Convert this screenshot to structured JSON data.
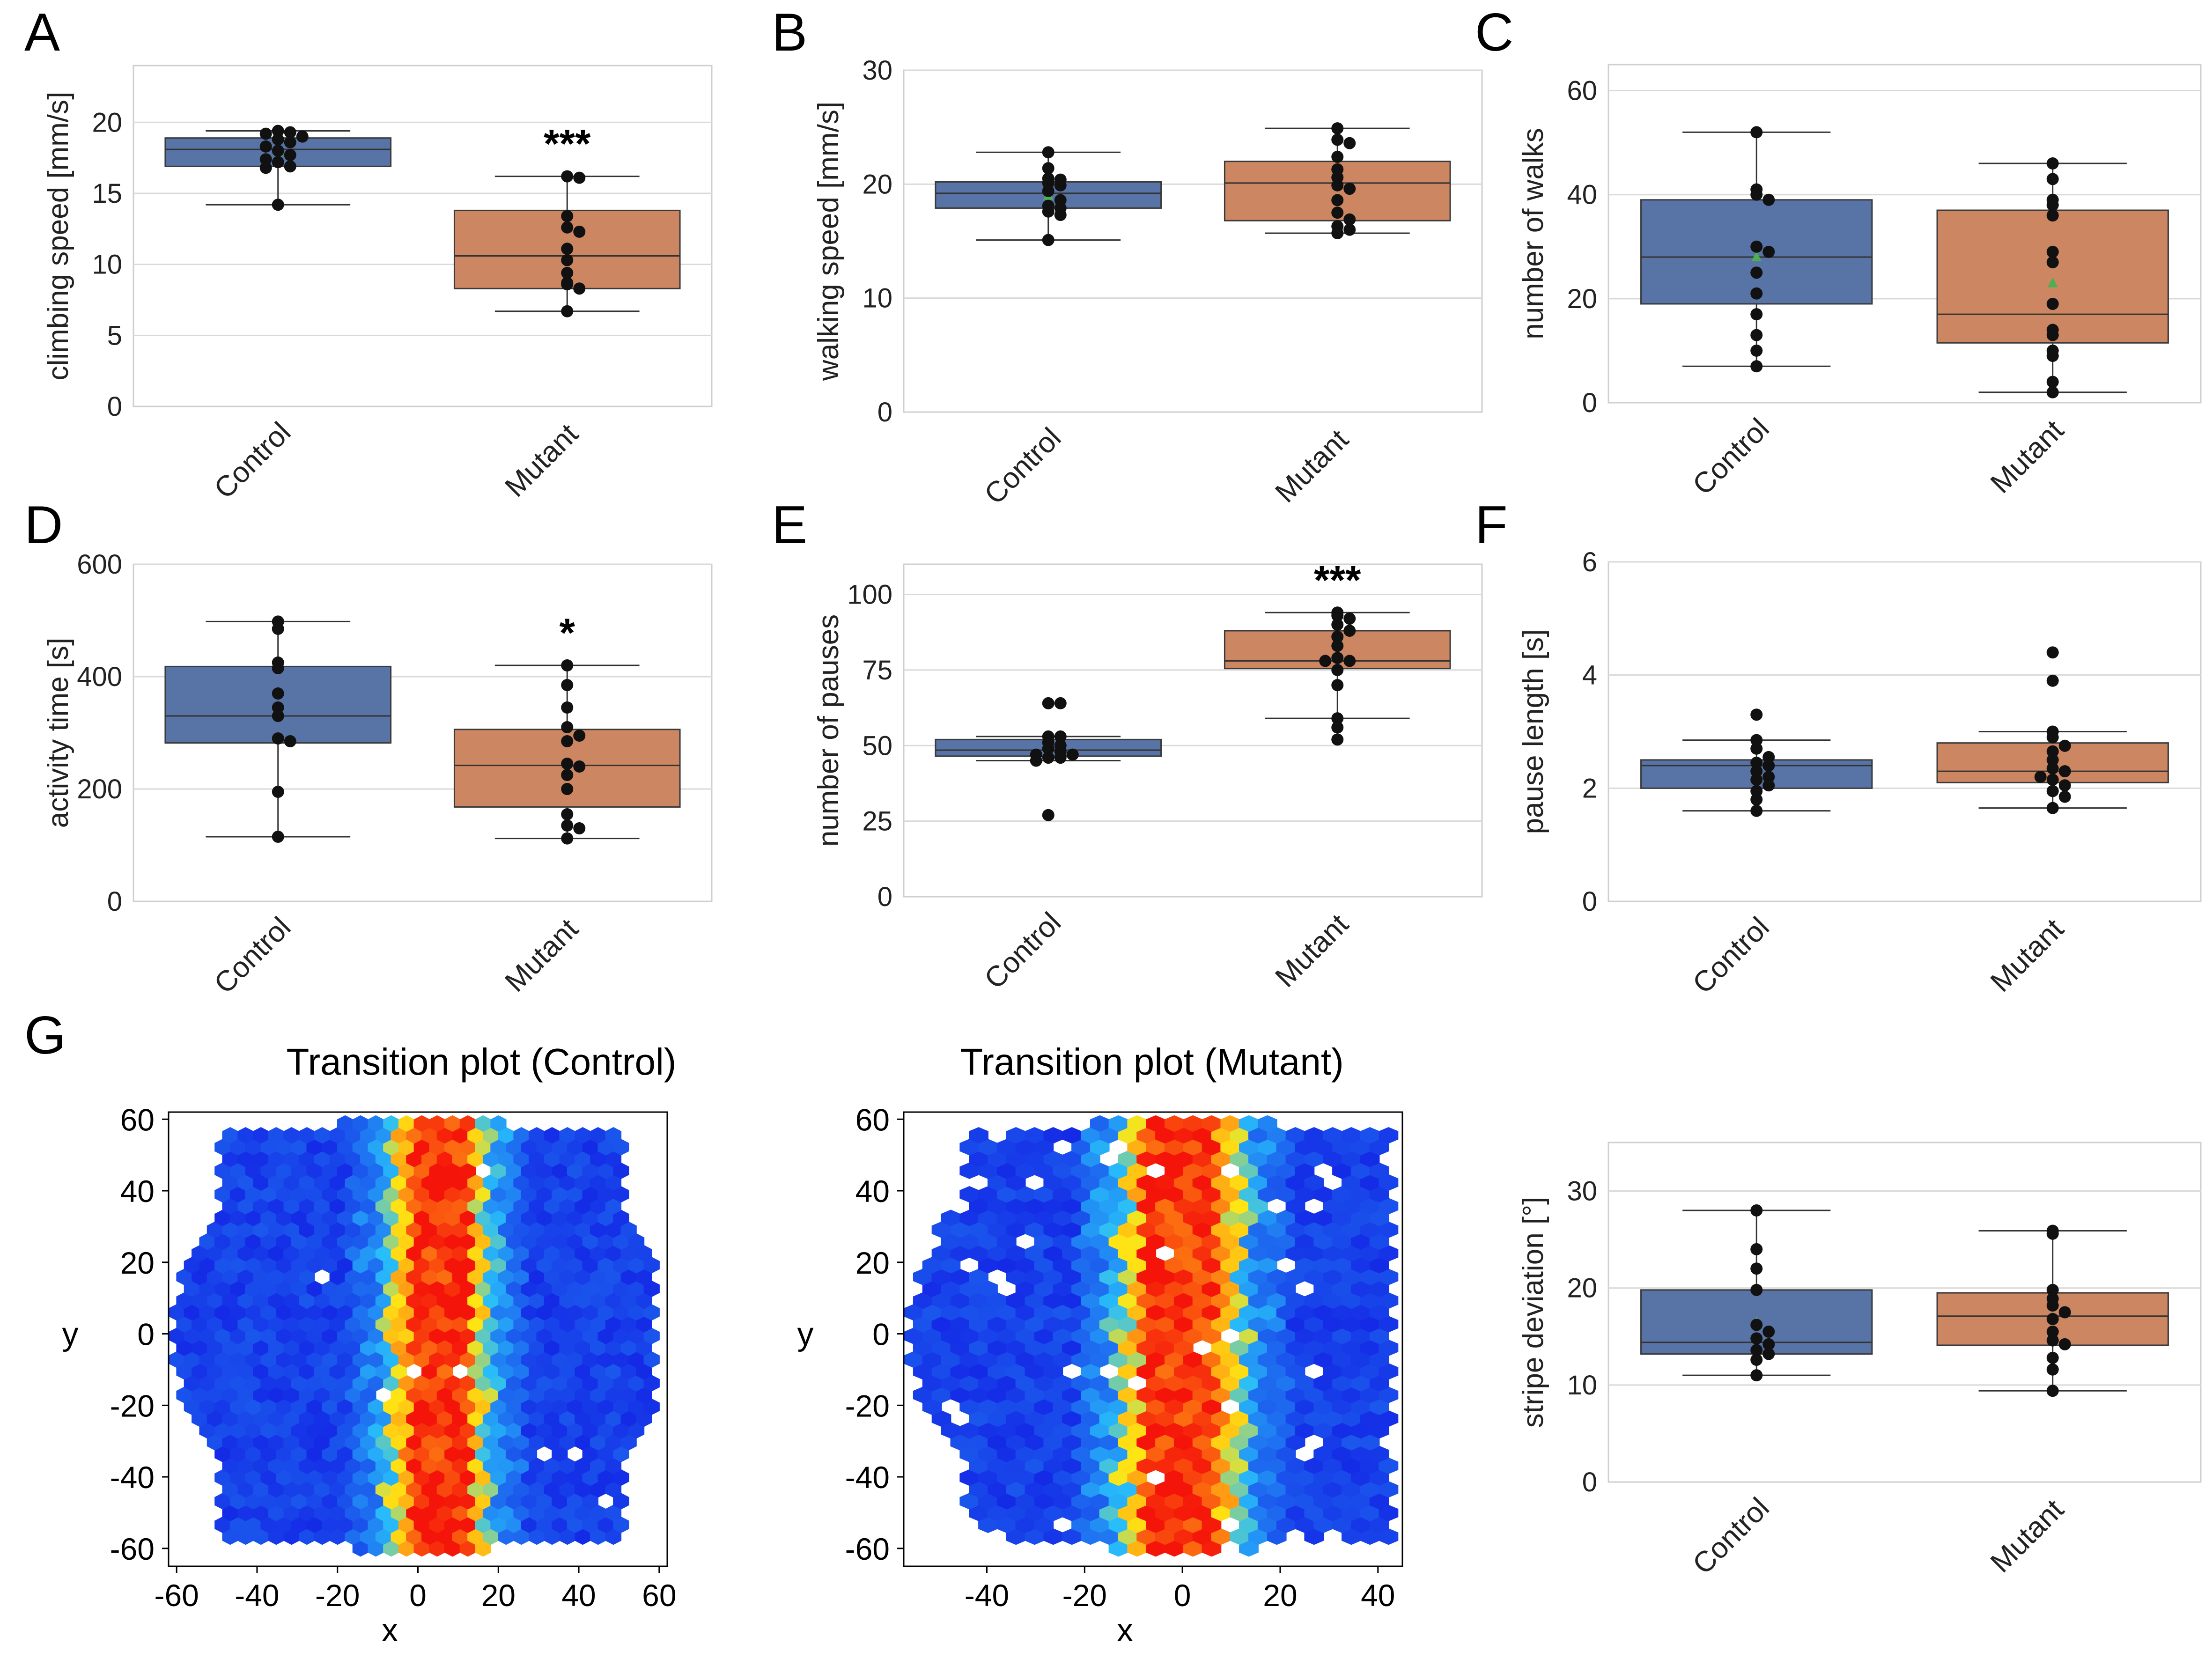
{
  "figure": {
    "panel_letters": [
      "A",
      "B",
      "C",
      "D",
      "E",
      "F",
      "G"
    ]
  },
  "colors": {
    "control_box": "#5874a6",
    "mutant_box": "#cd8662",
    "point": "#111111",
    "mean_marker": "#4caf50",
    "grid": "#d9d9d9",
    "spine": "#cfcfcf",
    "heatmap_low": "#1637e6",
    "heatmap_high": "#ff0000"
  },
  "chart_data": [
    {
      "id": "A",
      "type": "box",
      "ylabel": "climbing speed [mm/s]",
      "categories": [
        "Control",
        "Mutant"
      ],
      "yticks": [
        0,
        5,
        10,
        15,
        20
      ],
      "ylim": [
        0,
        24
      ],
      "grid": true,
      "significance": [
        "",
        "***"
      ],
      "boxes": [
        {
          "name": "Control",
          "whisker_low": 14.2,
          "q1": 16.9,
          "median": 18.1,
          "q3": 18.9,
          "whisker_high": 19.4,
          "mean": 17.9,
          "points": [
            19.4,
            19.3,
            19.2,
            19.0,
            18.8,
            18.6,
            18.3,
            18.0,
            17.7,
            17.4,
            17.2,
            16.9,
            16.8,
            14.2
          ]
        },
        {
          "name": "Mutant",
          "whisker_low": 6.7,
          "q1": 8.3,
          "median": 10.6,
          "q3": 13.8,
          "whisker_high": 16.2,
          "mean": 11.2,
          "points": [
            16.2,
            16.1,
            13.4,
            12.6,
            12.3,
            11.1,
            10.3,
            9.4,
            8.7,
            8.6,
            8.3,
            6.7
          ]
        }
      ]
    },
    {
      "id": "B",
      "type": "box",
      "ylabel": "walking speed [mm/s]",
      "categories": [
        "Control",
        "Mutant"
      ],
      "yticks": [
        0,
        10,
        20,
        30
      ],
      "ylim": [
        0,
        30
      ],
      "grid": true,
      "significance": [
        "",
        ""
      ],
      "boxes": [
        {
          "name": "Control",
          "whisker_low": 15.1,
          "q1": 17.9,
          "median": 19.2,
          "q3": 20.2,
          "whisker_high": 22.8,
          "mean": 19.0,
          "points": [
            22.8,
            21.4,
            20.5,
            20.4,
            20.1,
            19.9,
            19.4,
            18.6,
            18.1,
            17.9,
            17.6,
            17.3,
            15.1
          ]
        },
        {
          "name": "Mutant",
          "whisker_low": 15.7,
          "q1": 16.8,
          "median": 20.1,
          "q3": 22.0,
          "whisker_high": 24.9,
          "mean": 19.9,
          "points": [
            24.9,
            23.9,
            23.6,
            22.4,
            21.3,
            20.6,
            19.9,
            19.6,
            18.6,
            17.5,
            16.9,
            16.3,
            16.0,
            15.7
          ]
        }
      ]
    },
    {
      "id": "C",
      "type": "box",
      "ylabel": "number of walks",
      "categories": [
        "Control",
        "Mutant"
      ],
      "yticks": [
        0,
        20,
        40,
        60
      ],
      "ylim": [
        0,
        65
      ],
      "grid": true,
      "significance": [
        "",
        ""
      ],
      "boxes": [
        {
          "name": "Control",
          "whisker_low": 7,
          "q1": 19,
          "median": 28,
          "q3": 39,
          "whisker_high": 52,
          "mean": 28,
          "points": [
            52,
            41,
            40,
            39,
            30,
            29,
            25,
            21,
            17,
            13,
            10,
            7
          ]
        },
        {
          "name": "Mutant",
          "whisker_low": 2,
          "q1": 11.5,
          "median": 17,
          "q3": 37,
          "whisker_high": 46,
          "mean": 23,
          "points": [
            46,
            43,
            39,
            38,
            36,
            29,
            27,
            19,
            14,
            13,
            10,
            9,
            4,
            2
          ]
        }
      ]
    },
    {
      "id": "D",
      "type": "box",
      "ylabel": "activity time [s]",
      "categories": [
        "Control",
        "Mutant"
      ],
      "yticks": [
        0,
        200,
        400,
        600
      ],
      "ylim": [
        0,
        600
      ],
      "grid": true,
      "significance": [
        "",
        "*"
      ],
      "boxes": [
        {
          "name": "Control",
          "whisker_low": 115,
          "q1": 282,
          "median": 330,
          "q3": 418,
          "whisker_high": 498,
          "mean": 340,
          "points": [
            498,
            485,
            425,
            415,
            370,
            345,
            330,
            290,
            285,
            195,
            115
          ]
        },
        {
          "name": "Mutant",
          "whisker_low": 112,
          "q1": 168,
          "median": 242,
          "q3": 306,
          "whisker_high": 420,
          "mean": 245,
          "points": [
            420,
            385,
            345,
            310,
            295,
            285,
            245,
            240,
            225,
            200,
            155,
            135,
            130,
            112
          ]
        }
      ]
    },
    {
      "id": "E",
      "type": "box",
      "ylabel": "number of pauses",
      "categories": [
        "Control",
        "Mutant"
      ],
      "yticks": [
        0,
        25,
        50,
        75,
        100
      ],
      "ylim": [
        0,
        110
      ],
      "grid": true,
      "significance": [
        "",
        "***"
      ],
      "boxes": [
        {
          "name": "Control",
          "whisker_low": 45,
          "q1": 46.5,
          "median": 48.5,
          "q3": 52,
          "whisker_high": 53,
          "mean": 49,
          "points": [
            64,
            64,
            53,
            53,
            51,
            50,
            49,
            48,
            47,
            47,
            46,
            46,
            45,
            27
          ]
        },
        {
          "name": "Mutant",
          "whisker_low": 59,
          "q1": 75.5,
          "median": 78,
          "q3": 88,
          "whisker_high": 94,
          "mean": 79,
          "points": [
            94,
            93,
            92,
            90,
            88,
            86,
            83,
            79,
            78,
            78,
            75,
            70,
            59,
            56,
            52
          ]
        }
      ]
    },
    {
      "id": "F",
      "type": "box",
      "ylabel": "pause length [s]",
      "categories": [
        "Control",
        "Mutant"
      ],
      "yticks": [
        0,
        2,
        4,
        6
      ],
      "ylim": [
        0,
        6
      ],
      "grid": true,
      "significance": [
        "",
        ""
      ],
      "boxes": [
        {
          "name": "Control",
          "whisker_low": 1.6,
          "q1": 2.0,
          "median": 2.4,
          "q3": 2.5,
          "whisker_high": 2.85,
          "mean": 2.3,
          "points": [
            3.3,
            2.85,
            2.7,
            2.55,
            2.45,
            2.4,
            2.3,
            2.2,
            2.15,
            2.05,
            1.95,
            1.8,
            1.6
          ]
        },
        {
          "name": "Mutant",
          "whisker_low": 1.65,
          "q1": 2.1,
          "median": 2.3,
          "q3": 2.8,
          "whisker_high": 3.0,
          "mean": 2.45,
          "points": [
            4.4,
            3.9,
            3.0,
            2.9,
            2.75,
            2.65,
            2.5,
            2.35,
            2.3,
            2.2,
            2.15,
            2.05,
            1.95,
            1.85,
            1.65
          ]
        }
      ]
    },
    {
      "id": "G3",
      "type": "box",
      "ylabel": "stripe deviation [°]",
      "categories": [
        "Control",
        "Mutant"
      ],
      "yticks": [
        0,
        10,
        20,
        30
      ],
      "ylim": [
        0,
        35
      ],
      "grid": true,
      "significance": [
        "",
        ""
      ],
      "boxes": [
        {
          "name": "Control",
          "whisker_low": 11,
          "q1": 13.2,
          "median": 14.4,
          "q3": 19.8,
          "whisker_high": 28,
          "mean": 16.5,
          "points": [
            28,
            24,
            22,
            19.8,
            16.2,
            15.5,
            14.8,
            14.2,
            13.6,
            13.2,
            12.6,
            11
          ]
        },
        {
          "name": "Mutant",
          "whisker_low": 9.4,
          "q1": 14.1,
          "median": 17.1,
          "q3": 19.5,
          "whisker_high": 25.9,
          "mean": 17.0,
          "points": [
            25.9,
            25.6,
            19.8,
            18.9,
            18.2,
            17.5,
            16.8,
            15.5,
            14.6,
            14.2,
            12.8,
            11.6,
            9.4
          ]
        }
      ]
    },
    {
      "id": "G1",
      "type": "heatmap",
      "title": "Transition plot (Control)",
      "xlabel": "x",
      "ylabel": "y",
      "xticks": [
        -60,
        -40,
        -20,
        0,
        20,
        40,
        60
      ],
      "yticks": [
        60,
        40,
        20,
        0,
        -20,
        -40,
        -60
      ],
      "xlim": [
        -62,
        62
      ],
      "ylim": [
        -65,
        62
      ],
      "stripe_center": 5,
      "stripe_halfwidth": 14,
      "region_radius": 62,
      "gaps": "few"
    },
    {
      "id": "G2",
      "type": "heatmap",
      "title": "Transition plot (Mutant)",
      "xlabel": "x",
      "ylabel": "y",
      "xticks": [
        -40,
        -20,
        0,
        20,
        40
      ],
      "yticks": [
        60,
        40,
        20,
        0,
        -20,
        -40,
        -60
      ],
      "xlim": [
        -57,
        45
      ],
      "ylim": [
        -65,
        62
      ],
      "stripe_center": 0,
      "stripe_halfwidth": 14,
      "region_radius": 56,
      "gaps": "many"
    }
  ]
}
